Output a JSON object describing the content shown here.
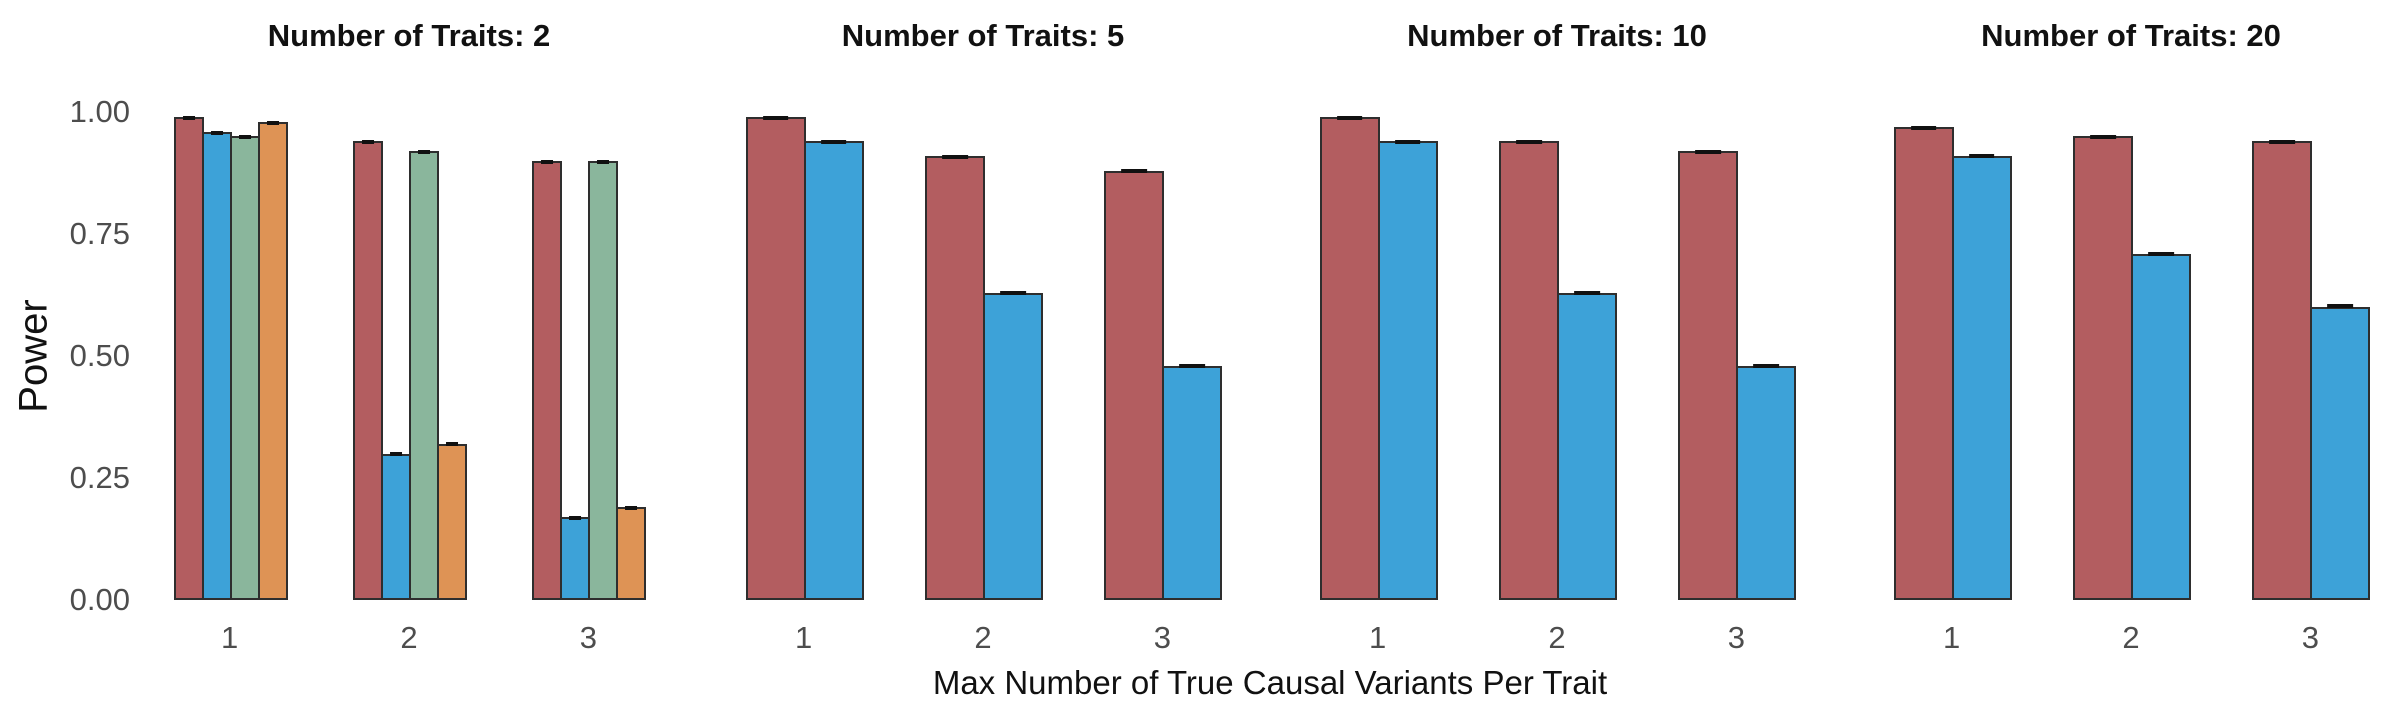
{
  "chart_data": {
    "type": "bar",
    "ylabel": "Power",
    "xlabel": "Max Number of True Causal Variants Per Trait",
    "ylim": [
      0,
      1
    ],
    "yticks": [
      "1.00",
      "0.75",
      "0.50",
      "0.25",
      "0.00"
    ],
    "grid": false,
    "legend": "none",
    "facets": [
      {
        "title": "Number of Traits: 2",
        "categories": [
          "1",
          "2",
          "3"
        ],
        "series": [
          {
            "id": "red",
            "color": "#b35d60",
            "values": [
              0.99,
              0.94,
              0.9
            ],
            "errors": [
              0.004,
              0.004,
              0.004
            ]
          },
          {
            "id": "blue",
            "color": "#3da2d8",
            "values": [
              0.96,
              0.3,
              0.17
            ],
            "errors": [
              0.004,
              0.005,
              0.005
            ]
          },
          {
            "id": "green",
            "color": "#8ab69c",
            "values": [
              0.95,
              0.92,
              0.9
            ],
            "errors": [
              0.004,
              0.004,
              0.004
            ]
          },
          {
            "id": "orange",
            "color": "#de9355",
            "values": [
              0.98,
              0.32,
              0.19
            ],
            "errors": [
              0.004,
              0.006,
              0.005
            ]
          }
        ]
      },
      {
        "title": "Number of Traits: 5",
        "categories": [
          "1",
          "2",
          "3"
        ],
        "series": [
          {
            "id": "red",
            "color": "#b35d60",
            "values": [
              0.99,
              0.91,
              0.88
            ],
            "errors": [
              0.003,
              0.004,
              0.005
            ]
          },
          {
            "id": "blue",
            "color": "#3da2d8",
            "values": [
              0.94,
              0.63,
              0.48
            ],
            "errors": [
              0.004,
              0.005,
              0.005
            ]
          }
        ]
      },
      {
        "title": "Number of Traits: 10",
        "categories": [
          "1",
          "2",
          "3"
        ],
        "series": [
          {
            "id": "red",
            "color": "#b35d60",
            "values": [
              0.99,
              0.94,
              0.92
            ],
            "errors": [
              0.003,
              0.004,
              0.004
            ]
          },
          {
            "id": "blue",
            "color": "#3da2d8",
            "values": [
              0.94,
              0.63,
              0.48
            ],
            "errors": [
              0.004,
              0.005,
              0.005
            ]
          }
        ]
      },
      {
        "title": "Number of Traits: 20",
        "categories": [
          "1",
          "2",
          "3"
        ],
        "series": [
          {
            "id": "red",
            "color": "#b35d60",
            "values": [
              0.97,
              0.95,
              0.94
            ],
            "errors": [
              0.004,
              0.004,
              0.004
            ]
          },
          {
            "id": "blue",
            "color": "#3da2d8",
            "values": [
              0.91,
              0.71,
              0.6
            ],
            "errors": [
              0.005,
              0.005,
              0.008
            ]
          }
        ]
      }
    ]
  }
}
